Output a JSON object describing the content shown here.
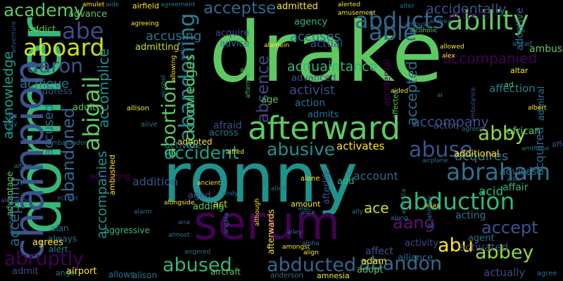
{
  "words": [
    {
      "text": "drake",
      "color": "#5ec962"
    },
    {
      "text": "ronny",
      "color": "#21918c"
    },
    {
      "text": "dormer",
      "color": "#35b779"
    },
    {
      "text": "serum",
      "color": "#440154"
    },
    {
      "text": "champion",
      "color": "#3b528b"
    },
    {
      "text": "afterward",
      "color": "#5ec962"
    },
    {
      "text": "abducts",
      "color": "#31688e"
    },
    {
      "text": "ability",
      "color": "#5ec962"
    },
    {
      "text": "able",
      "color": "#31688e"
    },
    {
      "text": "abe",
      "color": "#3e4a89"
    },
    {
      "text": "aboard",
      "color": "#c8e020"
    },
    {
      "text": "aaron",
      "color": "#3b528b"
    },
    {
      "text": "abigail",
      "color": "#5ec962"
    },
    {
      "text": "abortion",
      "color": "#5ec962"
    },
    {
      "text": "abandoning",
      "color": "#26828e"
    },
    {
      "text": "abduction",
      "color": "#35b779"
    },
    {
      "text": "abraham",
      "color": "#2c728e"
    },
    {
      "text": "abby",
      "color": "#90d743"
    },
    {
      "text": "abuse",
      "color": "#3b528b"
    },
    {
      "text": "abusive",
      "color": "#21918c"
    },
    {
      "text": "accident",
      "color": "#1f9e89"
    },
    {
      "text": "aang",
      "color": "#5c126e"
    },
    {
      "text": "abu",
      "color": "#fde725"
    },
    {
      "text": "abbey",
      "color": "#90d743"
    },
    {
      "text": "accept",
      "color": "#3b528b"
    },
    {
      "text": "abused",
      "color": "#35b779"
    },
    {
      "text": "abducted",
      "color": "#31688e"
    },
    {
      "text": "abandon",
      "color": "#31688e"
    },
    {
      "text": "abruptly",
      "color": "#440154"
    },
    {
      "text": "acceptse",
      "color": "#31688e"
    },
    {
      "text": "absence",
      "color": "#3e4a89"
    },
    {
      "text": "accepted",
      "color": "#2c728e"
    },
    {
      "text": "accompanied",
      "color": "#440154"
    },
    {
      "text": "accidentally",
      "color": "#3b528b"
    },
    {
      "text": "academy",
      "color": "#5ec962"
    },
    {
      "text": "abandoned",
      "color": "#31688e"
    },
    {
      "text": "accepting",
      "color": "#31688e"
    },
    {
      "text": "acknowledge",
      "color": "#1f9e89"
    },
    {
      "text": "accused",
      "color": "#31688e"
    },
    {
      "text": "accomplice",
      "color": "#21918c"
    },
    {
      "text": "accusing",
      "color": "#2c728e"
    },
    {
      "text": "accuses",
      "color": "#2c728e"
    },
    {
      "text": "acquaintance",
      "color": "#35b779"
    },
    {
      "text": "acknowledges",
      "color": "#5ec962"
    },
    {
      "text": "activist",
      "color": "#3e4a89"
    },
    {
      "text": "achieve",
      "color": "#2c728e"
    },
    {
      "text": "accompany",
      "color": "#3b528b"
    },
    {
      "text": "accompanies",
      "color": "#21918c"
    },
    {
      "text": "actress",
      "color": "#440154"
    },
    {
      "text": "activated",
      "color": "#3e4a89"
    },
    {
      "text": "actually",
      "color": "#3e4a89"
    },
    {
      "text": "acid",
      "color": "#35b779"
    },
    {
      "text": "ace",
      "color": "#c8e020"
    },
    {
      "text": "account",
      "color": "#31688e"
    },
    {
      "text": "activates",
      "color": "#fde725"
    },
    {
      "text": "adopted",
      "color": "#fde725"
    },
    {
      "text": "admitted",
      "color": "#fde725"
    },
    {
      "text": "admits",
      "color": "#2c728e"
    },
    {
      "text": "activate",
      "color": "#31688e"
    },
    {
      "text": "acquires",
      "color": "#2c728e"
    },
    {
      "text": "additional",
      "color": "#fde725"
    },
    {
      "text": "addition",
      "color": "#3b528b"
    },
    {
      "text": "acting",
      "color": "#2c728e"
    },
    {
      "text": "advises",
      "color": "#2c728e"
    },
    {
      "text": "affair",
      "color": "#35b779"
    },
    {
      "text": "african",
      "color": "#5ec962"
    },
    {
      "text": "acquired",
      "color": "#31688e"
    },
    {
      "text": "admiral",
      "color": "#2c728e"
    },
    {
      "text": "adoptive",
      "color": "#31688e"
    },
    {
      "text": "ambush",
      "color": "#5ec962"
    },
    {
      "text": "affection",
      "color": "#26828e"
    },
    {
      "text": "advance",
      "color": "#5ec962"
    },
    {
      "text": "actor",
      "color": "#3b528b"
    },
    {
      "text": "action",
      "color": "#2c728e"
    },
    {
      "text": "actual",
      "color": "#3b528b"
    },
    {
      "text": "acquire",
      "color": "#3b528b"
    },
    {
      "text": "advice",
      "color": "#2c728e"
    },
    {
      "text": "agency",
      "color": "#35b779"
    },
    {
      "text": "advanced",
      "color": "#3b528b"
    },
    {
      "text": "age",
      "color": "#5ec962"
    },
    {
      "text": "afraid",
      "color": "#3b528b"
    },
    {
      "text": "across",
      "color": "#2c728e"
    },
    {
      "text": "addict",
      "color": "#5ec962"
    },
    {
      "text": "address",
      "color": "#3b528b"
    },
    {
      "text": "adult",
      "color": "#5ec962"
    },
    {
      "text": "admitting",
      "color": "#c8e020"
    },
    {
      "text": "affect",
      "color": "#3b528b"
    },
    {
      "text": "activity",
      "color": "#3e4a89"
    },
    {
      "text": "adam",
      "color": "#fde725"
    },
    {
      "text": "adopt",
      "color": "#5ec962"
    },
    {
      "text": "alliance",
      "color": "#31688e"
    },
    {
      "text": "agent",
      "color": "#2c728e"
    },
    {
      "text": "adding",
      "color": "#5ec962"
    },
    {
      "text": "aged",
      "color": "#3b528b"
    },
    {
      "text": "act",
      "color": "#c8e020"
    },
    {
      "text": "add",
      "color": "#35b779"
    },
    {
      "text": "afterlife",
      "color": "#3b528b"
    },
    {
      "text": "afterwards",
      "color": "#fde725"
    },
    {
      "text": "accidental",
      "color": "#440154"
    },
    {
      "text": "aggressive",
      "color": "#35b779"
    },
    {
      "text": "advantage",
      "color": "#5ec962"
    },
    {
      "text": "alert",
      "color": "#2c728e"
    },
    {
      "text": "always",
      "color": "#2c728e"
    },
    {
      "text": "alan",
      "color": "#2c728e"
    },
    {
      "text": "agrees",
      "color": "#fde725"
    },
    {
      "text": "admit",
      "color": "#3e4a89"
    },
    {
      "text": "angel",
      "color": "#2c728e"
    },
    {
      "text": "airport",
      "color": "#fde725"
    },
    {
      "text": "allows",
      "color": "#2c728e"
    },
    {
      "text": "alison",
      "color": "#2c728e"
    },
    {
      "text": "aircraft",
      "color": "#5ec962"
    },
    {
      "text": "anderson",
      "color": "#2c728e"
    },
    {
      "text": "amnesia",
      "color": "#fde725"
    },
    {
      "text": "agree",
      "color": "#2c728e"
    },
    {
      "text": "amulet",
      "color": "#fde725"
    },
    {
      "text": "aide",
      "color": "#2c728e"
    },
    {
      "text": "airfield",
      "color": "#fde725"
    },
    {
      "text": "agreement",
      "color": "#2c728e"
    },
    {
      "text": "alerted",
      "color": "#fde725"
    },
    {
      "text": "alter",
      "color": "#2c728e"
    },
    {
      "text": "amusement",
      "color": "#fde725"
    },
    {
      "text": "ambush",
      "color": "#2c728e"
    },
    {
      "text": "agreeing",
      "color": "#fde725"
    },
    {
      "text": "andrea",
      "color": "#2c728e"
    },
    {
      "text": "alcoholic",
      "color": "#5ec962"
    },
    {
      "text": "allowed",
      "color": "#fde725"
    },
    {
      "text": "ahead",
      "color": "#2c728e"
    },
    {
      "text": "alex",
      "color": "#fde725"
    },
    {
      "text": "altar",
      "color": "#fde725"
    },
    {
      "text": "alamein",
      "color": "#fde725"
    },
    {
      "text": "aim",
      "color": "#5ec962"
    },
    {
      "text": "aided",
      "color": "#fde725"
    },
    {
      "text": "al",
      "color": "#2c728e"
    },
    {
      "text": "ambulance",
      "color": "#3b528b"
    },
    {
      "text": "allison",
      "color": "#fde725"
    },
    {
      "text": "alive",
      "color": "#2c728e"
    },
    {
      "text": "albert",
      "color": "#fde725"
    },
    {
      "text": "agreed",
      "color": "#2c728e"
    },
    {
      "text": "ambrose",
      "color": "#2c728e"
    },
    {
      "text": "alfred",
      "color": "#fde725"
    },
    {
      "text": "alien",
      "color": "#2c728e"
    },
    {
      "text": "airplane",
      "color": "#2c728e"
    },
    {
      "text": "ancient",
      "color": "#fde725"
    },
    {
      "text": "alone",
      "color": "#fde725"
    },
    {
      "text": "andy",
      "color": "#2c728e"
    },
    {
      "text": "alarm",
      "color": "#2c728e"
    },
    {
      "text": "alice",
      "color": "#2c728e"
    },
    {
      "text": "amount",
      "color": "#fde725"
    },
    {
      "text": "alec",
      "color": "#2c728e"
    },
    {
      "text": "ally",
      "color": "#2c728e"
    },
    {
      "text": "along",
      "color": "#2c728e"
    },
    {
      "text": "alias",
      "color": "#fde725"
    },
    {
      "text": "ana",
      "color": "#2c728e"
    },
    {
      "text": "alley",
      "color": "#2c728e"
    },
    {
      "text": "amongst",
      "color": "#fde725"
    },
    {
      "text": "almost",
      "color": "#2c728e"
    },
    {
      "text": "alpha",
      "color": "#2c728e"
    },
    {
      "text": "align",
      "color": "#fde725"
    },
    {
      "text": "angered",
      "color": "#2c728e"
    },
    {
      "text": "ali",
      "color": "#2c728e"
    },
    {
      "text": "amy",
      "color": "#2c728e"
    },
    {
      "text": "alexander",
      "color": "#3b528b"
    },
    {
      "text": "albright",
      "color": "#2c728e"
    },
    {
      "text": "alternate",
      "color": "#2c728e"
    },
    {
      "text": "ambassador",
      "color": "#2c728e"
    },
    {
      "text": "ambitious",
      "color": "#2c728e"
    },
    {
      "text": "adventure",
      "color": "#3b528b"
    },
    {
      "text": "access",
      "color": "#3b528b"
    },
    {
      "text": "according",
      "color": "#440154"
    },
    {
      "text": "ambushed",
      "color": "#fde725"
    },
    {
      "text": "alongside",
      "color": "#fde725"
    },
    {
      "text": "allowing",
      "color": "#fde725"
    },
    {
      "text": "alcohol",
      "color": "#2c728e"
    },
    {
      "text": "although",
      "color": "#fde725"
    },
    {
      "text": "angela",
      "color": "#2c728e"
    },
    {
      "text": "america",
      "color": "#2c728e"
    },
    {
      "text": "already",
      "color": "#2c728e"
    },
    {
      "text": "allie",
      "color": "#2c728e"
    },
    {
      "text": "active",
      "color": "#3e4a89"
    },
    {
      "text": "aftermath",
      "color": "#35b779"
    },
    {
      "text": "affected",
      "color": "#5ec962"
    },
    {
      "text": "ad",
      "color": "#5ec962"
    },
    {
      "text": "afford",
      "color": "#3b528b"
    }
  ]
}
